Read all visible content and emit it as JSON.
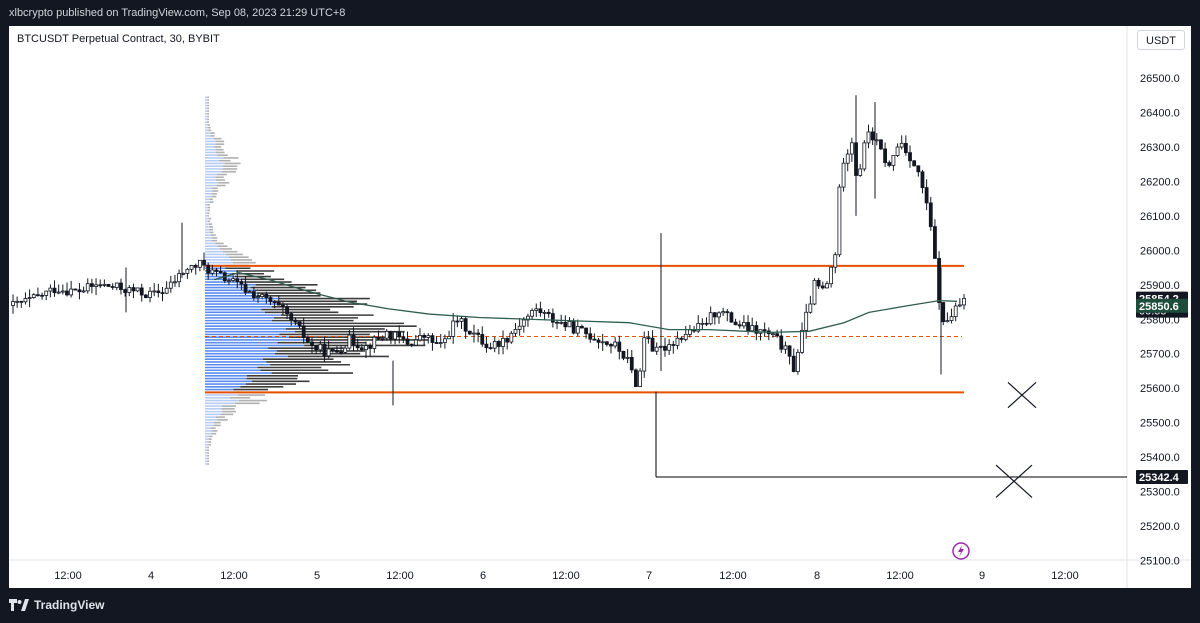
{
  "header": {
    "published_text": "xlbcrypto published on TradingView.com, Sep 08, 2023 21:29 UTC+8"
  },
  "footer": {
    "brand": "TradingView"
  },
  "chart_data": {
    "type": "candlestick",
    "symbol_label": "BTCUSDT Perpetual Contract, 30, BYBIT",
    "currency": "USDT",
    "y_ticks": [
      26500.0,
      26400.0,
      26300.0,
      26200.0,
      26100.0,
      26000.0,
      25900.0,
      25800.0,
      25700.0,
      25600.0,
      25500.0,
      25400.0,
      25300.0,
      25200.0,
      25100.0
    ],
    "y_tick_labels": [
      "26500.0",
      "26400.0",
      "26300.0",
      "26200.0",
      "26100.0",
      "26000.0",
      "25900.0",
      "25800.0",
      "25700.0",
      "25600.0",
      "25500.0",
      "25400.0",
      "25300.0",
      "25200.0",
      "25100.0"
    ],
    "ylim": [
      25100,
      26550
    ],
    "x_tick_labels": [
      "12:00",
      "4",
      "12:00",
      "5",
      "12:00",
      "6",
      "12:00",
      "7",
      "12:00",
      "8",
      "12:00",
      "9",
      "12:00"
    ],
    "horizontal_levels": [
      {
        "name": "range-high",
        "price": 25955,
        "color": "#e65100"
      },
      {
        "name": "range-low",
        "price": 25588,
        "color": "#e65100"
      },
      {
        "name": "point-of-control",
        "price": 25750,
        "color": "#e65100"
      },
      {
        "name": "target-line",
        "price": 25342.4,
        "color": "#000000"
      }
    ],
    "price_labels": [
      {
        "text": "25854.2",
        "sub": "00:55",
        "price": 25854.2,
        "bg": "#131722",
        "fg": "#ffffff"
      },
      {
        "text": "25850.6",
        "price": 25850.6,
        "bg": "#1e4d3c",
        "fg": "#ffffff"
      },
      {
        "text": "25342.4",
        "price": 25342.4,
        "bg": "#131722",
        "fg": "#ffffff"
      }
    ],
    "close_path": [
      [
        0,
        25840
      ],
      [
        0.02,
        25860
      ],
      [
        0.04,
        25890
      ],
      [
        0.06,
        25880
      ],
      [
        0.08,
        25900
      ],
      [
        0.1,
        25890
      ],
      [
        0.115,
        25880
      ],
      [
        0.13,
        25870
      ],
      [
        0.145,
        25890
      ],
      [
        0.16,
        25940
      ],
      [
        0.175,
        25960
      ],
      [
        0.19,
        25930
      ],
      [
        0.205,
        25910
      ],
      [
        0.22,
        25880
      ],
      [
        0.235,
        25860
      ],
      [
        0.25,
        25830
      ],
      [
        0.265,
        25780
      ],
      [
        0.28,
        25720
      ],
      [
        0.3,
        25700
      ],
      [
        0.315,
        25740
      ],
      [
        0.33,
        25720
      ],
      [
        0.35,
        25760
      ],
      [
        0.37,
        25730
      ],
      [
        0.385,
        25750
      ],
      [
        0.4,
        25720
      ],
      [
        0.415,
        25800
      ],
      [
        0.43,
        25760
      ],
      [
        0.445,
        25720
      ],
      [
        0.46,
        25740
      ],
      [
        0.475,
        25790
      ],
      [
        0.49,
        25830
      ],
      [
        0.505,
        25800
      ],
      [
        0.52,
        25780
      ],
      [
        0.535,
        25760
      ],
      [
        0.55,
        25740
      ],
      [
        0.565,
        25720
      ],
      [
        0.575,
        25680
      ],
      [
        0.58,
        25640
      ],
      [
        0.585,
        25600
      ],
      [
        0.592,
        25780
      ],
      [
        0.6,
        25700
      ],
      [
        0.615,
        25730
      ],
      [
        0.63,
        25760
      ],
      [
        0.645,
        25780
      ],
      [
        0.66,
        25830
      ],
      [
        0.675,
        25790
      ],
      [
        0.69,
        25770
      ],
      [
        0.705,
        25760
      ],
      [
        0.715,
        25740
      ],
      [
        0.725,
        25700
      ],
      [
        0.73,
        25650
      ],
      [
        0.74,
        25780
      ],
      [
        0.75,
        25900
      ],
      [
        0.76,
        25880
      ],
      [
        0.77,
        26000
      ],
      [
        0.775,
        26250
      ],
      [
        0.785,
        26320
      ],
      [
        0.79,
        26200
      ],
      [
        0.8,
        26350
      ],
      [
        0.81,
        26300
      ],
      [
        0.82,
        26240
      ],
      [
        0.83,
        26320
      ],
      [
        0.84,
        26270
      ],
      [
        0.85,
        26200
      ],
      [
        0.86,
        26050
      ],
      [
        0.865,
        25900
      ],
      [
        0.87,
        25780
      ],
      [
        0.88,
        25820
      ],
      [
        0.89,
        25854
      ]
    ]
  },
  "icons": {
    "flash": "flash-icon"
  }
}
